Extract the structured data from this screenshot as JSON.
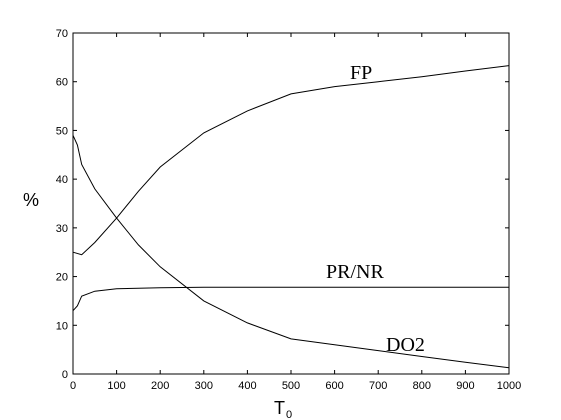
{
  "chart_data": {
    "type": "line",
    "title": "",
    "xlabel": "T",
    "xlabel_subscript": "0",
    "ylabel": "%",
    "xlim": [
      0,
      1000
    ],
    "ylim": [
      0,
      70
    ],
    "xticks": [
      0,
      100,
      200,
      300,
      400,
      500,
      600,
      700,
      800,
      900,
      1000
    ],
    "yticks": [
      0,
      10,
      20,
      30,
      40,
      50,
      60,
      70
    ],
    "grid": false,
    "legend": "none",
    "series": [
      {
        "name": "FP",
        "x": [
          0,
          20,
          50,
          100,
          150,
          200,
          300,
          400,
          500,
          600,
          700,
          800,
          900,
          1000
        ],
        "values": [
          25,
          24.5,
          27,
          32,
          37.5,
          42.5,
          49.5,
          54,
          57.5,
          59,
          60,
          61,
          62.2,
          63.3
        ]
      },
      {
        "name": "PR/NR",
        "x": [
          0,
          10,
          20,
          50,
          100,
          150,
          200,
          300,
          500,
          1000
        ],
        "values": [
          13,
          14,
          16,
          17,
          17.5,
          17.6,
          17.7,
          17.8,
          17.8,
          17.8
        ]
      },
      {
        "name": "DO2",
        "x": [
          0,
          10,
          20,
          50,
          100,
          150,
          200,
          300,
          400,
          500,
          600,
          700,
          800,
          900,
          1000
        ],
        "values": [
          49,
          47,
          43,
          38,
          32,
          26.5,
          22,
          15,
          10.5,
          7.2,
          6,
          4.8,
          3.6,
          2.4,
          1.3
        ]
      }
    ]
  }
}
